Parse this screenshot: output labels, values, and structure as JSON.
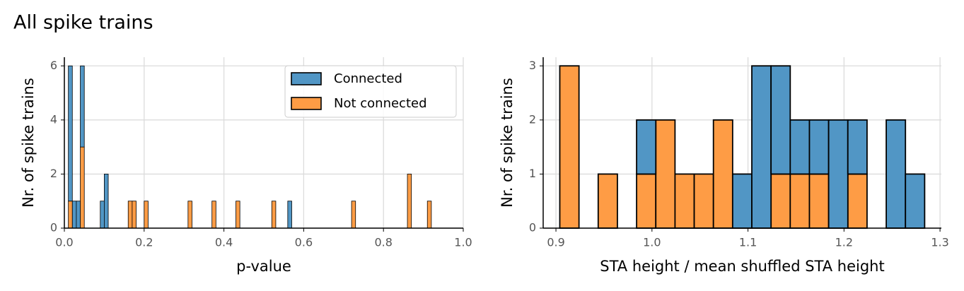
{
  "title": "All spike trains",
  "chart_data": [
    {
      "type": "histogram",
      "stacked": true,
      "xlabel": "p-value",
      "ylabel": "Nr. of spike trains",
      "bins": [
        0.01,
        0.02,
        0.03,
        0.04,
        0.05,
        0.06,
        0.07,
        0.08,
        0.09,
        0.1,
        0.11,
        0.12,
        0.13,
        0.14,
        0.15,
        0.16,
        0.17,
        0.18,
        0.19,
        0.2,
        0.21,
        0.22,
        0.23,
        0.24,
        0.25,
        0.26,
        0.27,
        0.28,
        0.29,
        0.3,
        0.31,
        0.32,
        0.33,
        0.34,
        0.35,
        0.36,
        0.37,
        0.38,
        0.39,
        0.4,
        0.41,
        0.42,
        0.43,
        0.44,
        0.45,
        0.46,
        0.47,
        0.48,
        0.49,
        0.5,
        0.51,
        0.52,
        0.53,
        0.54,
        0.55,
        0.56,
        0.57,
        0.58,
        0.59,
        0.6,
        0.61,
        0.62,
        0.63,
        0.64,
        0.65,
        0.66,
        0.67,
        0.68,
        0.69,
        0.7,
        0.71,
        0.72,
        0.73,
        0.74,
        0.75,
        0.76,
        0.77,
        0.78,
        0.79,
        0.8,
        0.81,
        0.82,
        0.83,
        0.84,
        0.85,
        0.86,
        0.87,
        0.88,
        0.89,
        0.9,
        0.91,
        0.92
      ],
      "series": [
        {
          "name": "Connected",
          "color": "#5196c5",
          "values": [
            5,
            1,
            1,
            3,
            0,
            0,
            0,
            0,
            1,
            2,
            0,
            0,
            0,
            0,
            0,
            0,
            0,
            0,
            0,
            0,
            0,
            0,
            0,
            0,
            0,
            0,
            0,
            0,
            0,
            0,
            0,
            0,
            0,
            0,
            0,
            0,
            0,
            0,
            0,
            0,
            0,
            0,
            0,
            0,
            0,
            0,
            0,
            0,
            0,
            0,
            0,
            0,
            0,
            0,
            0,
            1,
            0,
            0,
            0,
            0,
            0,
            0,
            0,
            0,
            0,
            0,
            0,
            0,
            0,
            0,
            0,
            0,
            0,
            0,
            0,
            0,
            0,
            0,
            0,
            0,
            0,
            0,
            0,
            0,
            0,
            0,
            0,
            0,
            0,
            0,
            0
          ]
        },
        {
          "name": "Not connected",
          "color": "#fe9c45",
          "values": [
            1,
            0,
            0,
            3,
            0,
            0,
            0,
            0,
            0,
            0,
            0,
            0,
            0,
            0,
            0,
            1,
            1,
            0,
            0,
            1,
            0,
            0,
            0,
            0,
            0,
            0,
            0,
            0,
            0,
            0,
            1,
            0,
            0,
            0,
            0,
            0,
            1,
            0,
            0,
            0,
            0,
            0,
            1,
            0,
            0,
            0,
            0,
            0,
            0,
            0,
            0,
            1,
            0,
            0,
            0,
            0,
            0,
            0,
            0,
            0,
            0,
            0,
            0,
            0,
            0,
            0,
            0,
            0,
            0,
            0,
            0,
            1,
            0,
            0,
            0,
            0,
            0,
            0,
            0,
            0,
            0,
            0,
            0,
            0,
            0,
            2,
            0,
            0,
            0,
            0,
            1
          ]
        }
      ],
      "xlim": [
        0,
        1
      ],
      "xticks": [
        {
          "value": 0,
          "label": "0.0"
        },
        0.2,
        0.4,
        0.6,
        0.8,
        {
          "value": 1,
          "label": "1.0"
        }
      ],
      "ylim": [
        0,
        6.32
      ],
      "yticks": [
        0,
        2,
        4,
        6
      ],
      "grid": true,
      "legend": "upper right"
    },
    {
      "type": "histogram",
      "stacked": true,
      "xlabel": "STA height / mean shuffled STA height",
      "ylabel": "Nr. of spike trains",
      "bins": [
        0.904,
        0.924,
        0.944,
        0.964,
        0.984,
        1.004,
        1.024,
        1.044,
        1.064,
        1.084,
        1.104,
        1.124,
        1.144,
        1.164,
        1.184,
        1.204,
        1.224,
        1.244,
        1.264,
        1.284
      ],
      "series": [
        {
          "name": "Connected",
          "color": "#5196c5",
          "values": [
            0,
            0,
            0,
            0,
            1,
            0,
            0,
            0,
            0,
            1,
            3,
            2,
            1,
            1,
            2,
            1,
            0,
            2,
            1
          ]
        },
        {
          "name": "Not connected",
          "color": "#fe9c45",
          "values": [
            3,
            0,
            1,
            0,
            1,
            2,
            1,
            1,
            2,
            0,
            0,
            1,
            1,
            1,
            0,
            1,
            0,
            0,
            0
          ]
        }
      ],
      "xlim": [
        0.8867,
        1.3014
      ],
      "xticks": [
        0.9,
        {
          "value": 1,
          "label": "1.0"
        },
        1.1,
        1.2,
        1.3
      ],
      "ylim": [
        0,
        3.16
      ],
      "yticks": [
        0,
        1,
        2,
        3
      ],
      "grid": true
    }
  ]
}
